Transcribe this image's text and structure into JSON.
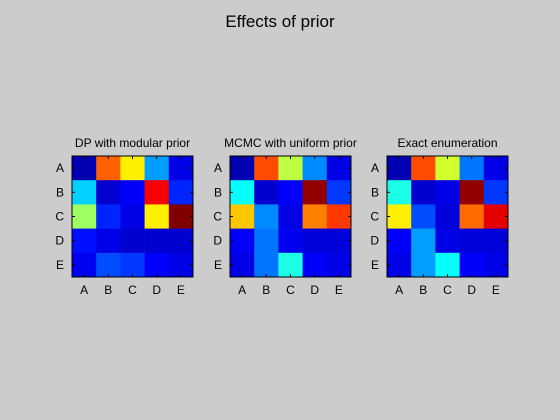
{
  "figure": {
    "title": "Effects of prior",
    "background": "#cccccc"
  },
  "colormap": "jet",
  "chart_data": [
    {
      "type": "heatmap",
      "title": "DP with modular prior",
      "xlabel": "",
      "ylabel": "",
      "x_categories": [
        "A",
        "B",
        "C",
        "D",
        "E"
      ],
      "y_categories": [
        "A",
        "B",
        "C",
        "D",
        "E"
      ],
      "clim": [
        0,
        1
      ],
      "values": [
        [
          0.05,
          0.78,
          0.64,
          0.28,
          0.1
        ],
        [
          0.33,
          0.08,
          0.12,
          0.88,
          0.16
        ],
        [
          0.53,
          0.16,
          0.1,
          0.64,
          1.0
        ],
        [
          0.14,
          0.1,
          0.08,
          0.08,
          0.08
        ],
        [
          0.11,
          0.2,
          0.18,
          0.12,
          0.1
        ]
      ]
    },
    {
      "type": "heatmap",
      "title": "MCMC with uniform prior",
      "xlabel": "",
      "ylabel": "",
      "x_categories": [
        "A",
        "B",
        "C",
        "D",
        "E"
      ],
      "y_categories": [
        "A",
        "B",
        "C",
        "D",
        "E"
      ],
      "clim": [
        0,
        1
      ],
      "values": [
        [
          0.05,
          0.8,
          0.56,
          0.26,
          0.1
        ],
        [
          0.38,
          0.08,
          0.12,
          0.98,
          0.18
        ],
        [
          0.68,
          0.26,
          0.1,
          0.75,
          0.82
        ],
        [
          0.12,
          0.24,
          0.11,
          0.09,
          0.09
        ],
        [
          0.1,
          0.24,
          0.4,
          0.12,
          0.1
        ]
      ]
    },
    {
      "type": "heatmap",
      "title": "Exact enumeration",
      "xlabel": "",
      "ylabel": "",
      "x_categories": [
        "A",
        "B",
        "C",
        "D",
        "E"
      ],
      "y_categories": [
        "A",
        "B",
        "C",
        "D",
        "E"
      ],
      "clim": [
        0,
        1
      ],
      "values": [
        [
          0.05,
          0.8,
          0.58,
          0.24,
          0.1
        ],
        [
          0.4,
          0.08,
          0.1,
          0.98,
          0.18
        ],
        [
          0.64,
          0.2,
          0.09,
          0.77,
          0.9
        ],
        [
          0.12,
          0.28,
          0.1,
          0.09,
          0.09
        ],
        [
          0.1,
          0.28,
          0.38,
          0.12,
          0.1
        ]
      ]
    }
  ]
}
